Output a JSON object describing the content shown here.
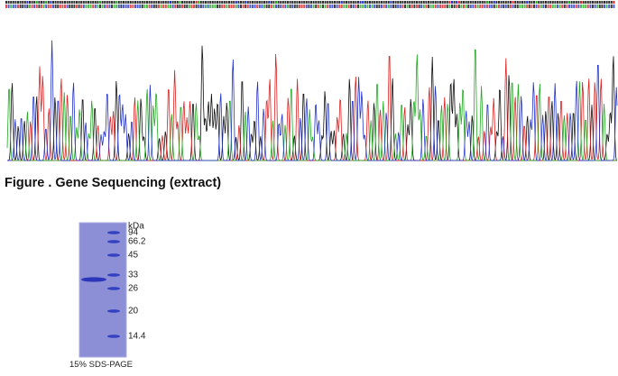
{
  "figure": {
    "caption": "Figure . Gene Sequencing (extract)"
  },
  "gel": {
    "unit": "kDa",
    "markers": [
      94,
      66.2,
      45,
      33,
      26,
      20,
      14.4
    ],
    "label": "15% SDS-PAGE"
  }
}
